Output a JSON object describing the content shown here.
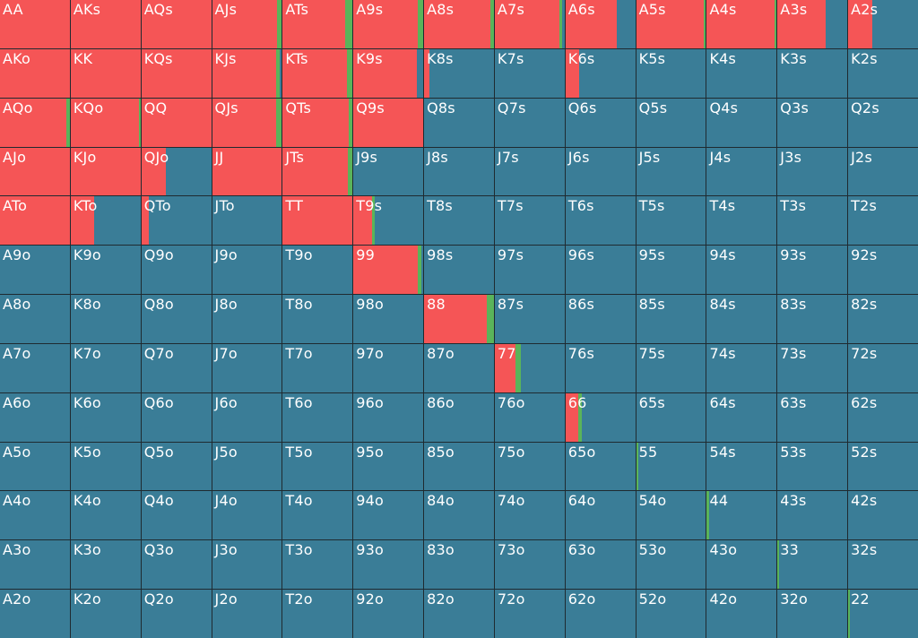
{
  "colors": {
    "raise": "#f55556",
    "call": "#5ab45a",
    "fold": "#3a7d97"
  },
  "grid": {
    "cells": [
      [
        {
          "label": "AA",
          "raise": 1,
          "call": 0
        },
        {
          "label": "AKs",
          "raise": 1,
          "call": 0
        },
        {
          "label": "AQs",
          "raise": 1,
          "call": 0
        },
        {
          "label": "AJs",
          "raise": 0.93,
          "call": 0.07
        },
        {
          "label": "ATs",
          "raise": 0.9,
          "call": 0.1
        },
        {
          "label": "A9s",
          "raise": 0.92,
          "call": 0.08
        },
        {
          "label": "A8s",
          "raise": 0.95,
          "call": 0.05
        },
        {
          "label": "A7s",
          "raise": 0.92,
          "call": 0.05
        },
        {
          "label": "A6s",
          "raise": 0.74,
          "call": 0
        },
        {
          "label": "A5s",
          "raise": 0.97,
          "call": 0.03
        },
        {
          "label": "A4s",
          "raise": 0.97,
          "call": 0.03
        },
        {
          "label": "A3s",
          "raise": 0.69,
          "call": 0
        },
        {
          "label": "A2s",
          "raise": 0.35,
          "call": 0
        }
      ],
      [
        {
          "label": "AKo",
          "raise": 1,
          "call": 0
        },
        {
          "label": "KK",
          "raise": 1,
          "call": 0
        },
        {
          "label": "KQs",
          "raise": 1,
          "call": 0
        },
        {
          "label": "KJs",
          "raise": 0.92,
          "call": 0.05
        },
        {
          "label": "KTs",
          "raise": 0.92,
          "call": 0.08
        },
        {
          "label": "K9s",
          "raise": 0.91,
          "call": 0
        },
        {
          "label": "K8s",
          "raise": 0.08,
          "call": 0
        },
        {
          "label": "K7s",
          "raise": 0,
          "call": 0
        },
        {
          "label": "K6s",
          "raise": 0.2,
          "call": 0
        },
        {
          "label": "K5s",
          "raise": 0,
          "call": 0
        },
        {
          "label": "K4s",
          "raise": 0,
          "call": 0
        },
        {
          "label": "K3s",
          "raise": 0,
          "call": 0
        },
        {
          "label": "K2s",
          "raise": 0,
          "call": 0
        }
      ],
      [
        {
          "label": "AQo",
          "raise": 0.95,
          "call": 0.05
        },
        {
          "label": "KQo",
          "raise": 0.98,
          "call": 0.02
        },
        {
          "label": "QQ",
          "raise": 1,
          "call": 0
        },
        {
          "label": "QJs",
          "raise": 0.92,
          "call": 0.08
        },
        {
          "label": "QTs",
          "raise": 0.95,
          "call": 0.05
        },
        {
          "label": "Q9s",
          "raise": 1,
          "call": 0
        },
        {
          "label": "Q8s",
          "raise": 0,
          "call": 0
        },
        {
          "label": "Q7s",
          "raise": 0,
          "call": 0
        },
        {
          "label": "Q6s",
          "raise": 0,
          "call": 0
        },
        {
          "label": "Q5s",
          "raise": 0,
          "call": 0
        },
        {
          "label": "Q4s",
          "raise": 0,
          "call": 0
        },
        {
          "label": "Q3s",
          "raise": 0,
          "call": 0
        },
        {
          "label": "Q2s",
          "raise": 0,
          "call": 0
        }
      ],
      [
        {
          "label": "AJo",
          "raise": 1,
          "call": 0
        },
        {
          "label": "KJo",
          "raise": 1,
          "call": 0
        },
        {
          "label": "QJo",
          "raise": 0.35,
          "call": 0
        },
        {
          "label": "JJ",
          "raise": 1,
          "call": 0
        },
        {
          "label": "JTs",
          "raise": 0.93,
          "call": 0.07
        },
        {
          "label": "J9s",
          "raise": 0,
          "call": 0
        },
        {
          "label": "J8s",
          "raise": 0,
          "call": 0
        },
        {
          "label": "J7s",
          "raise": 0,
          "call": 0
        },
        {
          "label": "J6s",
          "raise": 0,
          "call": 0
        },
        {
          "label": "J5s",
          "raise": 0,
          "call": 0
        },
        {
          "label": "J4s",
          "raise": 0,
          "call": 0
        },
        {
          "label": "J3s",
          "raise": 0,
          "call": 0
        },
        {
          "label": "J2s",
          "raise": 0,
          "call": 0
        }
      ],
      [
        {
          "label": "ATo",
          "raise": 1,
          "call": 0
        },
        {
          "label": "KTo",
          "raise": 0.33,
          "call": 0
        },
        {
          "label": "QTo",
          "raise": 0.11,
          "call": 0
        },
        {
          "label": "JTo",
          "raise": 0,
          "call": 0
        },
        {
          "label": "TT",
          "raise": 1,
          "call": 0
        },
        {
          "label": "T9s",
          "raise": 0.27,
          "call": 0.04
        },
        {
          "label": "T8s",
          "raise": 0,
          "call": 0
        },
        {
          "label": "T7s",
          "raise": 0,
          "call": 0
        },
        {
          "label": "T6s",
          "raise": 0,
          "call": 0
        },
        {
          "label": "T5s",
          "raise": 0,
          "call": 0
        },
        {
          "label": "T4s",
          "raise": 0,
          "call": 0
        },
        {
          "label": "T3s",
          "raise": 0,
          "call": 0
        },
        {
          "label": "T2s",
          "raise": 0,
          "call": 0
        }
      ],
      [
        {
          "label": "A9o",
          "raise": 0,
          "call": 0
        },
        {
          "label": "K9o",
          "raise": 0,
          "call": 0
        },
        {
          "label": "Q9o",
          "raise": 0,
          "call": 0
        },
        {
          "label": "J9o",
          "raise": 0,
          "call": 0
        },
        {
          "label": "T9o",
          "raise": 0,
          "call": 0
        },
        {
          "label": "99",
          "raise": 0.92,
          "call": 0.05
        },
        {
          "label": "98s",
          "raise": 0,
          "call": 0
        },
        {
          "label": "97s",
          "raise": 0,
          "call": 0
        },
        {
          "label": "96s",
          "raise": 0,
          "call": 0
        },
        {
          "label": "95s",
          "raise": 0,
          "call": 0
        },
        {
          "label": "94s",
          "raise": 0,
          "call": 0
        },
        {
          "label": "93s",
          "raise": 0,
          "call": 0
        },
        {
          "label": "92s",
          "raise": 0,
          "call": 0
        }
      ],
      [
        {
          "label": "A8o",
          "raise": 0,
          "call": 0
        },
        {
          "label": "K8o",
          "raise": 0,
          "call": 0
        },
        {
          "label": "Q8o",
          "raise": 0,
          "call": 0
        },
        {
          "label": "J8o",
          "raise": 0,
          "call": 0
        },
        {
          "label": "T8o",
          "raise": 0,
          "call": 0
        },
        {
          "label": "98o",
          "raise": 0,
          "call": 0
        },
        {
          "label": "88",
          "raise": 0.9,
          "call": 0.1
        },
        {
          "label": "87s",
          "raise": 0,
          "call": 0
        },
        {
          "label": "86s",
          "raise": 0,
          "call": 0
        },
        {
          "label": "85s",
          "raise": 0,
          "call": 0
        },
        {
          "label": "84s",
          "raise": 0,
          "call": 0
        },
        {
          "label": "83s",
          "raise": 0,
          "call": 0
        },
        {
          "label": "82s",
          "raise": 0,
          "call": 0
        }
      ],
      [
        {
          "label": "A7o",
          "raise": 0,
          "call": 0
        },
        {
          "label": "K7o",
          "raise": 0,
          "call": 0
        },
        {
          "label": "Q7o",
          "raise": 0,
          "call": 0
        },
        {
          "label": "J7o",
          "raise": 0,
          "call": 0
        },
        {
          "label": "T7o",
          "raise": 0,
          "call": 0
        },
        {
          "label": "97o",
          "raise": 0,
          "call": 0
        },
        {
          "label": "87o",
          "raise": 0,
          "call": 0
        },
        {
          "label": "77",
          "raise": 0.3,
          "call": 0.07
        },
        {
          "label": "76s",
          "raise": 0,
          "call": 0
        },
        {
          "label": "75s",
          "raise": 0,
          "call": 0
        },
        {
          "label": "74s",
          "raise": 0,
          "call": 0
        },
        {
          "label": "73s",
          "raise": 0,
          "call": 0
        },
        {
          "label": "72s",
          "raise": 0,
          "call": 0
        }
      ],
      [
        {
          "label": "A6o",
          "raise": 0,
          "call": 0
        },
        {
          "label": "K6o",
          "raise": 0,
          "call": 0
        },
        {
          "label": "Q6o",
          "raise": 0,
          "call": 0
        },
        {
          "label": "J6o",
          "raise": 0,
          "call": 0
        },
        {
          "label": "T6o",
          "raise": 0,
          "call": 0
        },
        {
          "label": "96o",
          "raise": 0,
          "call": 0
        },
        {
          "label": "86o",
          "raise": 0,
          "call": 0
        },
        {
          "label": "76o",
          "raise": 0,
          "call": 0
        },
        {
          "label": "66",
          "raise": 0.18,
          "call": 0.05
        },
        {
          "label": "65s",
          "raise": 0,
          "call": 0
        },
        {
          "label": "64s",
          "raise": 0,
          "call": 0
        },
        {
          "label": "63s",
          "raise": 0,
          "call": 0
        },
        {
          "label": "62s",
          "raise": 0,
          "call": 0
        }
      ],
      [
        {
          "label": "A5o",
          "raise": 0,
          "call": 0
        },
        {
          "label": "K5o",
          "raise": 0,
          "call": 0
        },
        {
          "label": "Q5o",
          "raise": 0,
          "call": 0
        },
        {
          "label": "J5o",
          "raise": 0,
          "call": 0
        },
        {
          "label": "T5o",
          "raise": 0,
          "call": 0
        },
        {
          "label": "95o",
          "raise": 0,
          "call": 0
        },
        {
          "label": "85o",
          "raise": 0,
          "call": 0
        },
        {
          "label": "75o",
          "raise": 0,
          "call": 0
        },
        {
          "label": "65o",
          "raise": 0,
          "call": 0
        },
        {
          "label": "55",
          "raise": 0,
          "call": 0.03
        },
        {
          "label": "54s",
          "raise": 0,
          "call": 0
        },
        {
          "label": "53s",
          "raise": 0,
          "call": 0
        },
        {
          "label": "52s",
          "raise": 0,
          "call": 0
        }
      ],
      [
        {
          "label": "A4o",
          "raise": 0,
          "call": 0
        },
        {
          "label": "K4o",
          "raise": 0,
          "call": 0
        },
        {
          "label": "Q4o",
          "raise": 0,
          "call": 0
        },
        {
          "label": "J4o",
          "raise": 0,
          "call": 0
        },
        {
          "label": "T4o",
          "raise": 0,
          "call": 0
        },
        {
          "label": "94o",
          "raise": 0,
          "call": 0
        },
        {
          "label": "84o",
          "raise": 0,
          "call": 0
        },
        {
          "label": "74o",
          "raise": 0,
          "call": 0
        },
        {
          "label": "64o",
          "raise": 0,
          "call": 0
        },
        {
          "label": "54o",
          "raise": 0,
          "call": 0
        },
        {
          "label": "44",
          "raise": 0,
          "call": 0.03
        },
        {
          "label": "43s",
          "raise": 0,
          "call": 0
        },
        {
          "label": "42s",
          "raise": 0,
          "call": 0
        }
      ],
      [
        {
          "label": "A3o",
          "raise": 0,
          "call": 0
        },
        {
          "label": "K3o",
          "raise": 0,
          "call": 0
        },
        {
          "label": "Q3o",
          "raise": 0,
          "call": 0
        },
        {
          "label": "J3o",
          "raise": 0,
          "call": 0
        },
        {
          "label": "T3o",
          "raise": 0,
          "call": 0
        },
        {
          "label": "93o",
          "raise": 0,
          "call": 0
        },
        {
          "label": "83o",
          "raise": 0,
          "call": 0
        },
        {
          "label": "73o",
          "raise": 0,
          "call": 0
        },
        {
          "label": "63o",
          "raise": 0,
          "call": 0
        },
        {
          "label": "53o",
          "raise": 0,
          "call": 0
        },
        {
          "label": "43o",
          "raise": 0,
          "call": 0
        },
        {
          "label": "33",
          "raise": 0,
          "call": 0.02
        },
        {
          "label": "32s",
          "raise": 0,
          "call": 0
        }
      ],
      [
        {
          "label": "A2o",
          "raise": 0,
          "call": 0
        },
        {
          "label": "K2o",
          "raise": 0,
          "call": 0
        },
        {
          "label": "Q2o",
          "raise": 0,
          "call": 0
        },
        {
          "label": "J2o",
          "raise": 0,
          "call": 0
        },
        {
          "label": "T2o",
          "raise": 0,
          "call": 0
        },
        {
          "label": "92o",
          "raise": 0,
          "call": 0
        },
        {
          "label": "82o",
          "raise": 0,
          "call": 0
        },
        {
          "label": "72o",
          "raise": 0,
          "call": 0
        },
        {
          "label": "62o",
          "raise": 0,
          "call": 0
        },
        {
          "label": "52o",
          "raise": 0,
          "call": 0
        },
        {
          "label": "42o",
          "raise": 0,
          "call": 0
        },
        {
          "label": "32o",
          "raise": 0,
          "call": 0
        },
        {
          "label": "22",
          "raise": 0,
          "call": 0.02
        }
      ]
    ]
  }
}
